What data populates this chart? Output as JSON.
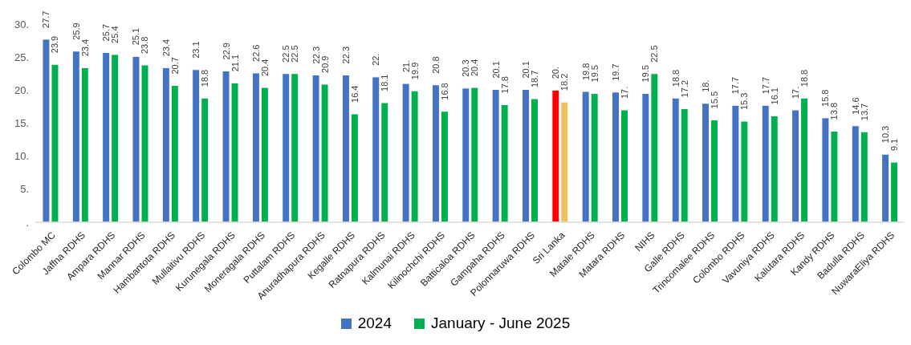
{
  "chart_data": {
    "type": "bar",
    "categories": [
      "Colombo MC",
      "Jaffna RDHS",
      "Ampara RDHS",
      "Mannar RDHS",
      "Hambantota RDHS",
      "Mullaitivu RDHS",
      "Kurunegala RDHS",
      "Moneragala RDHS",
      "Puttalam RDHS",
      "Anuradhapura RDHS",
      "Kegalle RDHS",
      "Ratnapura RDHS",
      "Kalmunai RDHS",
      "Kilinochchi RDHS",
      "Batticaloa RDHS",
      "Gampaha RDHS",
      "Polonnaruwa RDHS",
      "Sri Lanka",
      "Matale RDHS",
      "Matara RDHS",
      "NIHS",
      "Galle RDHS",
      "Trincomalee RDHS",
      "Colombo RDHS",
      "Vavuniya RDHS",
      "Kalutara RDHS",
      "Kandy RDHS",
      "Badulla RDHS",
      "NuwaraEliya RDHS"
    ],
    "series": [
      {
        "name": "2024",
        "color": "#4472c4",
        "colors": [
          "#4472c4",
          "#4472c4",
          "#4472c4",
          "#4472c4",
          "#4472c4",
          "#4472c4",
          "#4472c4",
          "#4472c4",
          "#4472c4",
          "#4472c4",
          "#4472c4",
          "#4472c4",
          "#4472c4",
          "#4472c4",
          "#4472c4",
          "#4472c4",
          "#4472c4",
          "#ff0000",
          "#4472c4",
          "#4472c4",
          "#4472c4",
          "#4472c4",
          "#4472c4",
          "#4472c4",
          "#4472c4",
          "#4472c4",
          "#4472c4",
          "#4472c4",
          "#4472c4"
        ],
        "values": [
          27.7,
          25.9,
          25.7,
          25.1,
          23.4,
          23.1,
          22.9,
          22.6,
          22.5,
          22.3,
          22.3,
          22,
          21,
          20.8,
          20.3,
          20.1,
          20.1,
          20,
          19.8,
          19.7,
          19.5,
          18.8,
          18,
          17.7,
          17.7,
          17,
          15.8,
          14.6,
          10.3
        ],
        "value_labels": [
          "27.7",
          "25.9",
          "25.7",
          "25.1",
          "23.4",
          "23.1",
          "22.9",
          "22.6",
          "22.5",
          "22.3",
          "22.3",
          "22.",
          "21.",
          "20.8",
          "20.3",
          "20.1",
          "20.1",
          "20.",
          "19.8",
          "19.7",
          "19.5",
          "18.8",
          "18.",
          "17.7",
          "17.7",
          "17.",
          "15.8",
          "14.6",
          "10.3"
        ]
      },
      {
        "name": "January - June 2025",
        "color": "#00b050",
        "colors": [
          "#00b050",
          "#00b050",
          "#00b050",
          "#00b050",
          "#00b050",
          "#00b050",
          "#00b050",
          "#00b050",
          "#00b050",
          "#00b050",
          "#00b050",
          "#00b050",
          "#00b050",
          "#00b050",
          "#00b050",
          "#00b050",
          "#00b050",
          "#f0c05a",
          "#00b050",
          "#00b050",
          "#00b050",
          "#00b050",
          "#00b050",
          "#00b050",
          "#00b050",
          "#00b050",
          "#00b050",
          "#00b050",
          "#00b050"
        ],
        "values": [
          23.9,
          23.4,
          25.4,
          23.8,
          20.7,
          18.8,
          21.1,
          20.4,
          22.5,
          20.9,
          16.4,
          18.1,
          19.9,
          16.8,
          20.4,
          17.8,
          18.7,
          18.2,
          19.5,
          17,
          22.5,
          17.2,
          15.5,
          15.3,
          16.1,
          18.8,
          13.8,
          13.7,
          9.1
        ],
        "value_labels": [
          "23.9",
          "23.4",
          "25.4",
          "23.8",
          "20.7",
          "18.8",
          "21.1",
          "20.4",
          "22.5",
          "20.9",
          "16.4",
          "18.1",
          "19.9",
          "16.8",
          "20.4",
          "17.8",
          "18.7",
          "18.2",
          "19.5",
          "17.",
          "22.5",
          "17.2",
          "15.5",
          "15.3",
          "16.1",
          "18.8",
          "13.8",
          "13.7",
          "9.1"
        ]
      }
    ],
    "ylim": [
      0,
      30
    ],
    "yticks": [
      {
        "value": 0,
        "label": "."
      },
      {
        "value": 5,
        "label": "5."
      },
      {
        "value": 10,
        "label": "10."
      },
      {
        "value": 15,
        "label": "15."
      },
      {
        "value": 20,
        "label": "20."
      },
      {
        "value": 25,
        "label": "25."
      },
      {
        "value": 30,
        "label": "30."
      }
    ],
    "legend": "bottom"
  }
}
